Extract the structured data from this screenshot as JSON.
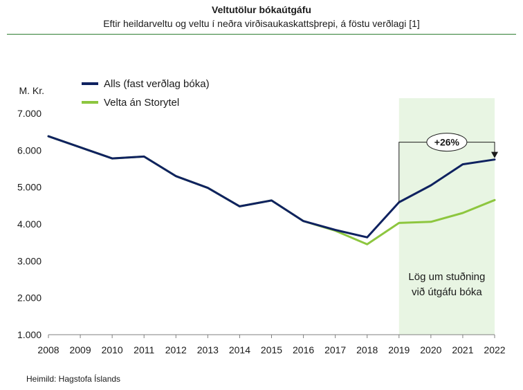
{
  "title": "Veltutölur bókaútgáfu",
  "subtitle": "Eftir heildarveltu og veltu í neðra virðisaukaskattsþrepi, á föstu verðlagi [1]",
  "source": "Heimild: Hagstofa Íslands",
  "colors": {
    "alls": "#0f2260",
    "velta": "#8dc63f",
    "highlight": "#e8f5e3",
    "title_rule": "#2e7d32"
  },
  "chart_data": {
    "type": "line",
    "title": "Veltutölur bókaútgáfu",
    "subtitle": "Eftir heildarveltu og veltu í neðra virðisaukaskattsþrepi, á föstu verðlagi [1]",
    "ylabel": "M. Kr.",
    "xlabel": "",
    "x": [
      "2008",
      "2009",
      "2010",
      "2011",
      "2012",
      "2013",
      "2014",
      "2015",
      "2016",
      "2017",
      "2018",
      "2019",
      "2020",
      "2021",
      "2022"
    ],
    "ylim": [
      1000,
      7000
    ],
    "yticks": [
      {
        "value": 1000,
        "label": "1.000"
      },
      {
        "value": 2000,
        "label": "2.000"
      },
      {
        "value": 3000,
        "label": "3.000"
      },
      {
        "value": 4000,
        "label": "4.000"
      },
      {
        "value": 5000,
        "label": "5.000"
      },
      {
        "value": 6000,
        "label": "6.000"
      },
      {
        "value": 7000,
        "label": "7.000"
      }
    ],
    "grid": false,
    "legend_position": "top-left",
    "series": [
      {
        "name": "Alls (fast verðlag bóka)",
        "color": "#0f2260",
        "values": [
          6380,
          6080,
          5780,
          5830,
          5300,
          4980,
          4480,
          4640,
          4080,
          3840,
          3640,
          4590,
          5050,
          5620,
          5750
        ]
      },
      {
        "name": "Velta án Storytel",
        "color": "#8dc63f",
        "values": [
          6380,
          6080,
          5780,
          5830,
          5300,
          4980,
          4480,
          4640,
          4080,
          3820,
          3450,
          4030,
          4060,
          4300,
          4650
        ]
      }
    ],
    "highlight": {
      "x_start": "2019",
      "x_end": "2022",
      "label_lines": [
        "Lög um stuðning",
        "við útgáfu bóka"
      ]
    },
    "annotation": {
      "text": "+26%",
      "from_x": "2019",
      "to_x": "2022",
      "level_value": 6220,
      "series_index": 0
    }
  }
}
